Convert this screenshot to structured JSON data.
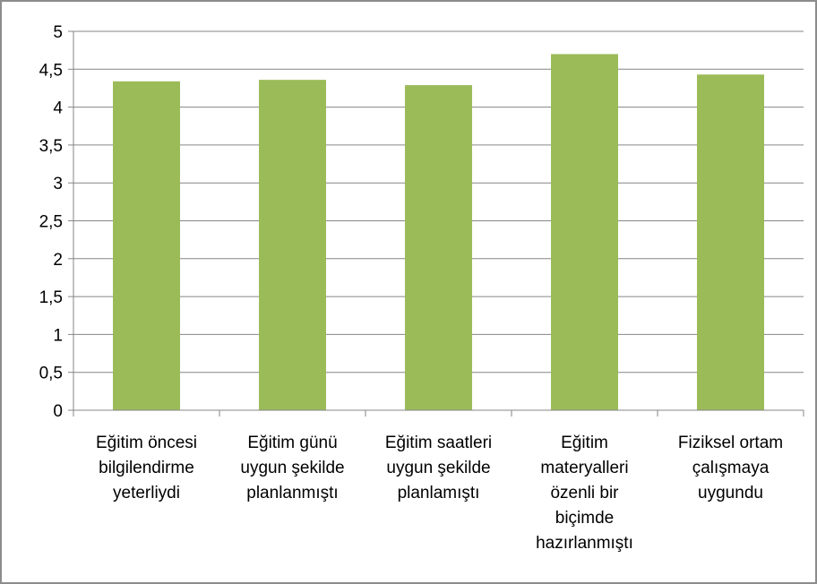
{
  "chart_data": {
    "type": "bar",
    "categories": [
      [
        "Eğitim öncesi",
        "bilgilendirme",
        "yeterliydi"
      ],
      [
        "Eğitim günü",
        "uygun şekilde",
        "planlanmıştı"
      ],
      [
        "Eğitim saatleri",
        "uygun şekilde",
        "planlamıştı"
      ],
      [
        "Eğitim",
        "materyalleri",
        "özenli bir",
        "biçimde",
        "hazırlanmıştı"
      ],
      [
        "Fiziksel ortam",
        "çalışmaya",
        "uygundu"
      ]
    ],
    "values": [
      4.34,
      4.36,
      4.29,
      4.7,
      4.43
    ],
    "title": "",
    "xlabel": "",
    "ylabel": "",
    "ylim": [
      0,
      5
    ],
    "yticks": [
      "0",
      "0,5",
      "1",
      "1,5",
      "2",
      "2,5",
      "3",
      "3,5",
      "4",
      "4,5",
      "5"
    ],
    "grid": "horizontal",
    "legend": "none",
    "bar_color": "#9bbb59",
    "grid_color": "#868686"
  }
}
